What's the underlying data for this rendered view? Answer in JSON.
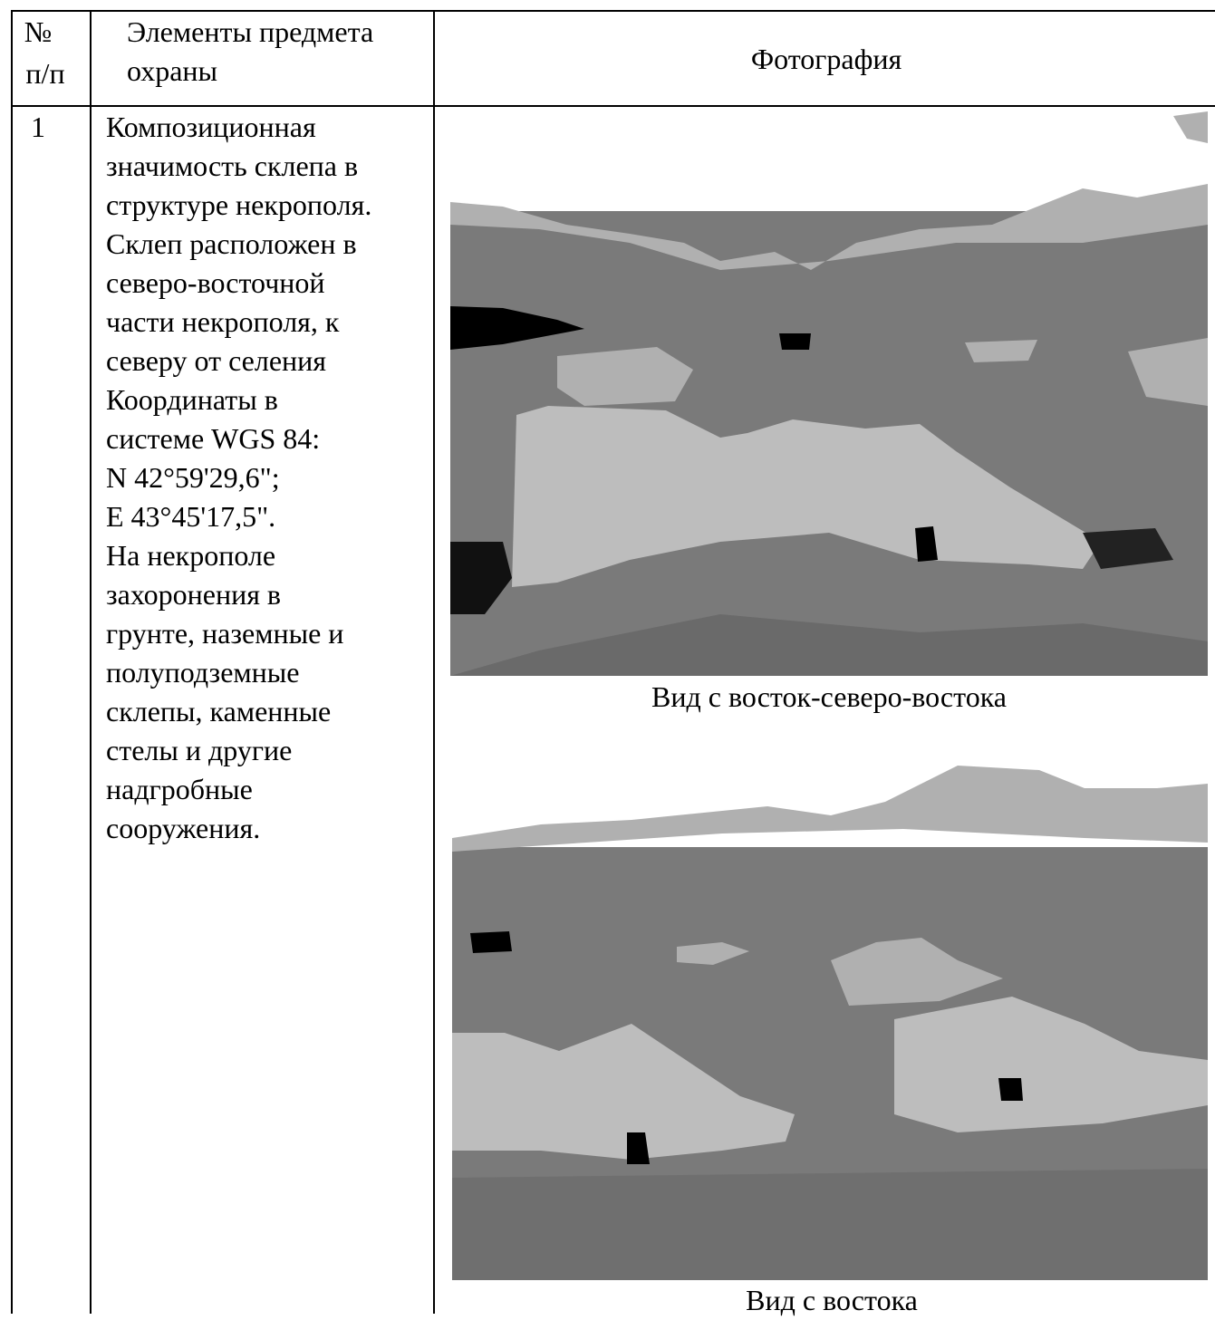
{
  "table": {
    "header": {
      "number": [
        "№",
        "п/п"
      ],
      "elements": [
        "Элементы предмета",
        "охраны"
      ],
      "photo": "Фотография"
    },
    "rows": [
      {
        "number": "1",
        "description": [
          "Композиционная",
          "значимость склепа в",
          "структуре некрополя.",
          "Склеп расположен в",
          "северо-восточной",
          "части некрополя, к",
          "северу от селения",
          "Координаты в",
          "системе WGS 84:",
          "N 42°59'29,6\";",
          "E 43°45'17,5\".",
          "На некрополе",
          "захоронения в",
          "грунте, наземные и",
          "полуподземные",
          "склепы, каменные",
          "стелы и другие",
          "надгробные",
          "сооружения."
        ],
        "photos": [
          {
            "caption": "Вид с восток-северо-востока"
          },
          {
            "caption": "Вид с востока"
          }
        ]
      }
    ]
  }
}
